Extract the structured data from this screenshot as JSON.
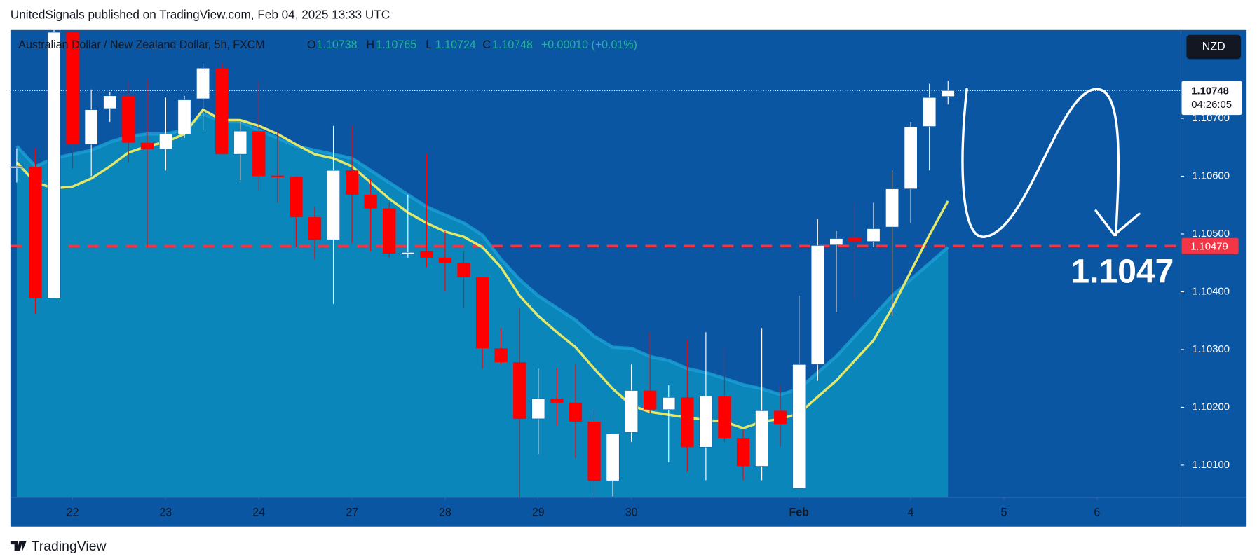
{
  "attribution": "UnitedSignals published on TradingView.com, Feb 04, 2025 13:33 UTC",
  "brand": "TradingView",
  "chart_data": {
    "type": "candlestick",
    "title": "Australian Dollar / New Zealand Dollar, 5h, FXCM",
    "header_ohlc": [
      {
        "label": "O",
        "value": 1.10738
      },
      {
        "label": "H",
        "value": 1.10765
      },
      {
        "label": "L",
        "value": 1.10724
      },
      {
        "label": "C",
        "value": 1.10748
      }
    ],
    "change": "+0.00010 (+0.01%)",
    "currency": "NZD",
    "up_color": "#ffffff",
    "down_color": "#ff0000",
    "ohlc": [
      [
        1.10614,
        1.10648,
        1.10589,
        1.10617
      ],
      [
        1.10616,
        1.10648,
        1.10362,
        1.10389
      ],
      [
        1.10389,
        1.10853,
        1.10389,
        1.10849
      ],
      [
        1.10849,
        1.10853,
        1.10613,
        1.10655
      ],
      [
        1.10655,
        1.1075,
        1.106,
        1.10715
      ],
      [
        1.10717,
        1.10746,
        1.10694,
        1.10739
      ],
      [
        1.10739,
        1.10765,
        1.10624,
        1.10658
      ],
      [
        1.10658,
        1.10767,
        1.10477,
        1.10647
      ],
      [
        1.10647,
        1.10736,
        1.1061,
        1.10673
      ],
      [
        1.10673,
        1.10739,
        1.10666,
        1.10732
      ],
      [
        1.10734,
        1.10795,
        1.1068,
        1.10787
      ],
      [
        1.10787,
        1.10795,
        1.10638,
        1.10638
      ],
      [
        1.10638,
        1.10694,
        1.10593,
        1.10678
      ],
      [
        1.10678,
        1.10765,
        1.10575,
        1.106
      ],
      [
        1.10601,
        1.1068,
        1.10554,
        1.106
      ],
      [
        1.10599,
        1.106,
        1.10477,
        1.10529
      ],
      [
        1.10529,
        1.10547,
        1.10456,
        1.1049
      ],
      [
        1.1049,
        1.10687,
        1.10379,
        1.1061
      ],
      [
        1.1061,
        1.10687,
        1.10484,
        1.10568
      ],
      [
        1.10568,
        1.10596,
        1.1047,
        1.10544
      ],
      [
        1.10544,
        1.10554,
        1.10459,
        1.10466
      ],
      [
        1.10467,
        1.10568,
        1.10459,
        1.10468
      ],
      [
        1.1047,
        1.10638,
        1.10442,
        1.10459
      ],
      [
        1.10459,
        1.10505,
        1.104,
        1.1045
      ],
      [
        1.1045,
        1.1047,
        1.10372,
        1.10425
      ],
      [
        1.10425,
        1.10425,
        1.10267,
        1.10302
      ],
      [
        1.10302,
        1.10337,
        1.10274,
        1.10278
      ],
      [
        1.10278,
        1.10372,
        1.10044,
        1.1018
      ],
      [
        1.1018,
        1.10267,
        1.10119,
        1.10215
      ],
      [
        1.10215,
        1.10267,
        1.10168,
        1.10208
      ],
      [
        1.10208,
        1.10274,
        1.10112,
        1.10175
      ],
      [
        1.10175,
        1.10196,
        1.10046,
        1.10073
      ],
      [
        1.10073,
        1.10154,
        1.10046,
        1.10154
      ],
      [
        1.10157,
        1.10274,
        1.1014,
        1.10229
      ],
      [
        1.10229,
        1.1033,
        1.10189,
        1.10196
      ],
      [
        1.10196,
        1.10238,
        1.10105,
        1.10217
      ],
      [
        1.10217,
        1.10316,
        1.10088,
        1.10131
      ],
      [
        1.10131,
        1.1033,
        1.10074,
        1.10219
      ],
      [
        1.10219,
        1.10302,
        1.1014,
        1.10147
      ],
      [
        1.10147,
        1.10161,
        1.10074,
        1.10098
      ],
      [
        1.10098,
        1.10337,
        1.10074,
        1.10194
      ],
      [
        1.10194,
        1.10238,
        1.10133,
        1.10171
      ],
      [
        1.1006,
        1.10393,
        1.1006,
        1.10274
      ],
      [
        1.10274,
        1.10526,
        1.10246,
        1.1048
      ],
      [
        1.10481,
        1.10505,
        1.10365,
        1.10492
      ],
      [
        1.10494,
        1.10554,
        1.10386,
        1.10487
      ],
      [
        1.10487,
        1.10554,
        1.10477,
        1.10509
      ],
      [
        1.10512,
        1.1061,
        1.10358,
        1.10578
      ],
      [
        1.10578,
        1.10694,
        1.10519,
        1.10685
      ],
      [
        1.10686,
        1.1076,
        1.1061,
        1.10736
      ],
      [
        1.10738,
        1.10765,
        1.10724,
        1.10748
      ]
    ],
    "ma": {
      "color": "#e3e86a",
      "values": [
        1.10624,
        1.10589,
        1.10579,
        1.10582,
        1.10596,
        1.10617,
        1.10641,
        1.10652,
        1.10659,
        1.10673,
        1.10715,
        1.10697,
        1.10697,
        1.10687,
        1.10673,
        1.10655,
        1.10638,
        1.10631,
        1.10617,
        1.10589,
        1.10561,
        1.10537,
        1.10519,
        1.10504,
        1.10495,
        1.10477,
        1.10442,
        1.10393,
        1.10358,
        1.1033,
        1.10304,
        1.10267,
        1.10232,
        1.10203,
        1.10192,
        1.10187,
        1.10182,
        1.10178,
        1.10175,
        1.10164,
        1.10175,
        1.1018,
        1.10189,
        1.10218,
        1.10246,
        1.10281,
        1.10316,
        1.10372,
        1.10435,
        1.10498,
        1.10557
      ]
    },
    "band": {
      "color": "#0b86ba",
      "values": [
        1.10652,
        1.10617,
        1.10631,
        1.10638,
        1.10645,
        1.10659,
        1.10669,
        1.10673,
        1.10673,
        1.1068,
        1.10708,
        1.10694,
        1.10694,
        1.1068,
        1.10666,
        1.10652,
        1.10645,
        1.10638,
        1.10631,
        1.1061,
        1.10589,
        1.10568,
        1.10547,
        1.10533,
        1.10519,
        1.10498,
        1.10456,
        1.10421,
        1.10393,
        1.10372,
        1.10351,
        1.10323,
        1.10304,
        1.10302,
        1.10288,
        1.10281,
        1.10267,
        1.1026,
        1.1025,
        1.10239,
        1.10232,
        1.10222,
        1.10232,
        1.1026,
        1.10288,
        1.10323,
        1.10358,
        1.10393,
        1.10421,
        1.10449,
        1.10477
      ]
    },
    "level": {
      "value": 1.10479,
      "color": "#f23645"
    },
    "annotation": "1.1047",
    "last": {
      "value": 1.10748,
      "countdown": "04:26:05"
    },
    "ylim": [
      1.10044,
      1.10853
    ],
    "yticks": [
      {
        "value": 1.101,
        "label": "1.10100"
      },
      {
        "value": 1.102,
        "label": "1.10200"
      },
      {
        "value": 1.103,
        "label": "1.10300"
      },
      {
        "value": 1.104,
        "label": "1.10400"
      },
      {
        "value": 1.105,
        "label": "1.10500"
      },
      {
        "value": 1.106,
        "label": "1.10600"
      },
      {
        "value": 1.107,
        "label": "1.10700"
      }
    ],
    "xlim": [
      -0.34,
      62.5
    ],
    "xticks": [
      {
        "value": 3,
        "label": "22"
      },
      {
        "value": 8,
        "label": "23"
      },
      {
        "value": 13,
        "label": "24"
      },
      {
        "value": 18,
        "label": "27"
      },
      {
        "value": 23,
        "label": "28"
      },
      {
        "value": 28,
        "label": "29"
      },
      {
        "value": 33,
        "label": "30"
      },
      {
        "value": 42,
        "label": "Feb"
      },
      {
        "value": 48,
        "label": "4"
      },
      {
        "value": 53,
        "label": "5"
      },
      {
        "value": 58,
        "label": "6"
      }
    ]
  }
}
